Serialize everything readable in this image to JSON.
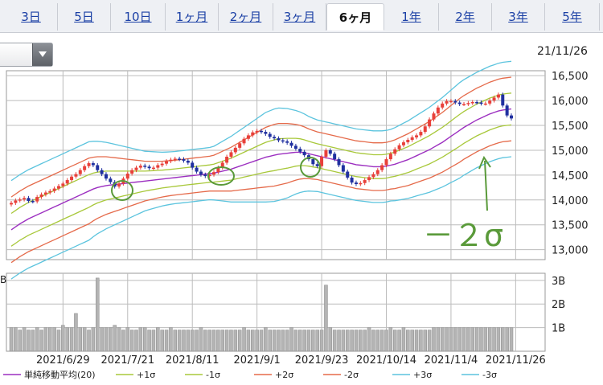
{
  "tabs": [
    {
      "label": "3日",
      "active": false
    },
    {
      "label": "5日",
      "active": false
    },
    {
      "label": "10日",
      "active": false
    },
    {
      "label": "1ヶ月",
      "active": false
    },
    {
      "label": "2ヶ月",
      "active": false
    },
    {
      "label": "3ヶ月",
      "active": false
    },
    {
      "label": "6ヶ月",
      "active": true
    },
    {
      "label": "1年",
      "active": false
    },
    {
      "label": "2年",
      "active": false
    },
    {
      "label": "3年",
      "active": false
    },
    {
      "label": "5年",
      "active": false
    }
  ],
  "dropdown_icon": "caret-down-icon",
  "last_date": "21/11/26",
  "colors": {
    "up": "#e8403a",
    "down": "#2030a0",
    "sma": "#9c2fc0",
    "p1": "#a8c83a",
    "m1": "#a8c83a",
    "p2": "#e56a4a",
    "m2": "#e56a4a",
    "p3": "#5cc4de",
    "m3": "#5cc4de",
    "volume": "#b4b4b4",
    "annotation": "#5a9a3a",
    "grid": "#bcbcbc"
  },
  "chart_data": {
    "type": "candlestick",
    "ylim": [
      12800,
      16600
    ],
    "yticks": [
      "16,500",
      "16,000",
      "15,500",
      "15,000",
      "14,500",
      "14,000",
      "13,500",
      "13,000"
    ],
    "ytick_values": [
      16500,
      16000,
      15500,
      15000,
      14500,
      14000,
      13500,
      13000
    ],
    "volume_ticks": [
      "3B",
      "2B",
      "1B"
    ],
    "volume_tick_values": [
      3,
      2,
      1
    ],
    "volume_unit": "B",
    "volume_ylim": [
      0,
      3.3
    ],
    "xticks": [
      "2021/6/29",
      "2021/7/21",
      "2021/8/11",
      "2021/9/1",
      "2021/9/23",
      "2021/10/14",
      "2021/11/4",
      "2021/11/26"
    ],
    "xtick_index": [
      12,
      27,
      42,
      57,
      72,
      87,
      102,
      117
    ],
    "close": [
      13940,
      13990,
      14010,
      14040,
      13980,
      13970,
      14060,
      14110,
      14150,
      14180,
      14230,
      14280,
      14330,
      14400,
      14470,
      14520,
      14600,
      14680,
      14740,
      14700,
      14600,
      14520,
      14430,
      14360,
      14270,
      14330,
      14430,
      14530,
      14600,
      14650,
      14690,
      14670,
      14640,
      14650,
      14700,
      14730,
      14780,
      14810,
      14830,
      14820,
      14790,
      14750,
      14650,
      14570,
      14510,
      14480,
      14510,
      14560,
      14650,
      14750,
      14870,
      14960,
      15050,
      15140,
      15230,
      15300,
      15360,
      15390,
      15370,
      15330,
      15270,
      15240,
      15200,
      15180,
      15150,
      15090,
      15030,
      14970,
      14900,
      14820,
      14720,
      14680,
      14870,
      15000,
      14930,
      14820,
      14700,
      14570,
      14450,
      14350,
      14320,
      14340,
      14400,
      14460,
      14520,
      14600,
      14700,
      14820,
      14930,
      15020,
      15100,
      15160,
      15210,
      15260,
      15300,
      15370,
      15480,
      15620,
      15740,
      15860,
      15940,
      15990,
      15990,
      15960,
      15930,
      15930,
      15950,
      15970,
      15960,
      15940,
      15940,
      16000,
      16060,
      16120,
      15900,
      15700,
      15640
    ],
    "volume": [
      1.0,
      1.0,
      0.9,
      1.0,
      0.9,
      0.9,
      1.0,
      0.9,
      1.0,
      1.0,
      1.0,
      0.9,
      1.1,
      1.0,
      1.0,
      1.6,
      1.0,
      1.0,
      0.9,
      1.0,
      3.1,
      1.0,
      1.0,
      1.0,
      1.1,
      1.0,
      0.9,
      1.0,
      0.9,
      0.9,
      1.0,
      1.0,
      0.9,
      0.9,
      1.0,
      0.9,
      0.9,
      1.0,
      0.9,
      0.9,
      0.9,
      0.9,
      0.9,
      0.9,
      1.0,
      0.9,
      0.9,
      0.9,
      0.9,
      0.9,
      0.9,
      0.9,
      0.9,
      0.9,
      1.0,
      0.9,
      0.9,
      0.9,
      0.9,
      1.0,
      0.9,
      0.9,
      0.9,
      0.9,
      0.9,
      1.0,
      0.9,
      0.9,
      0.9,
      0.9,
      0.9,
      0.9,
      0.9,
      2.8,
      1.0,
      0.9,
      0.9,
      0.9,
      0.9,
      0.9,
      0.9,
      0.9,
      0.9,
      1.0,
      0.9,
      0.9,
      0.9,
      0.9,
      1.0,
      0.9,
      0.9,
      1.0,
      0.9,
      0.9,
      0.9,
      0.9,
      0.9,
      0.9,
      1.0,
      1.0,
      1.0,
      1.0,
      1.0,
      1.0,
      1.0,
      1.0,
      1.0,
      1.0,
      1.0,
      1.0,
      1.0,
      1.0,
      1.0,
      1.0,
      1.0,
      1.0,
      1.0
    ],
    "sma20": [
      13400,
      13460,
      13520,
      13570,
      13620,
      13660,
      13700,
      13740,
      13780,
      13820,
      13860,
      13900,
      13940,
      13980,
      14020,
      14060,
      14100,
      14140,
      14180,
      14220,
      14250,
      14270,
      14290,
      14300,
      14310,
      14320,
      14330,
      14340,
      14350,
      14360,
      14370,
      14380,
      14390,
      14400,
      14410,
      14420,
      14430,
      14440,
      14450,
      14460,
      14470,
      14480,
      14490,
      14500,
      14510,
      14520,
      14530,
      14540,
      14560,
      14580,
      14600,
      14620,
      14650,
      14680,
      14710,
      14740,
      14770,
      14800,
      14830,
      14860,
      14880,
      14900,
      14920,
      14930,
      14940,
      14950,
      14960,
      14960,
      14950,
      14930,
      14910,
      14890,
      14870,
      14850,
      14830,
      14810,
      14790,
      14770,
      14750,
      14730,
      14710,
      14700,
      14690,
      14680,
      14670,
      14670,
      14670,
      14680,
      14700,
      14720,
      14750,
      14780,
      14810,
      14850,
      14890,
      14930,
      14970,
      15010,
      15060,
      15110,
      15160,
      15220,
      15280,
      15340,
      15400,
      15460,
      15510,
      15560,
      15610,
      15650,
      15690,
      15730,
      15760,
      15790,
      15810,
      15820,
      15830
    ],
    "sigma_offset": [
      330,
      330,
      330,
      330,
      330,
      330,
      330,
      330,
      330,
      330,
      330,
      330,
      330,
      330,
      330,
      330,
      330,
      330,
      330,
      320,
      310,
      300,
      290,
      280,
      270,
      260,
      250,
      240,
      230,
      220,
      210,
      200,
      195,
      190,
      185,
      180,
      178,
      176,
      175,
      175,
      175,
      175,
      175,
      175,
      175,
      175,
      175,
      180,
      190,
      200,
      210,
      220,
      230,
      240,
      250,
      260,
      270,
      280,
      290,
      300,
      305,
      310,
      310,
      305,
      300,
      290,
      280,
      270,
      260,
      250,
      245,
      240,
      240,
      240,
      240,
      240,
      240,
      240,
      240,
      240,
      240,
      240,
      240,
      240,
      240,
      240,
      240,
      240,
      240,
      245,
      250,
      255,
      260,
      265,
      270,
      275,
      280,
      285,
      290,
      295,
      300,
      305,
      310,
      315,
      320,
      320,
      320,
      320,
      320,
      320,
      320,
      320,
      320,
      320,
      320,
      320,
      320
    ]
  },
  "legend": [
    {
      "label": "単純移動平均(20)",
      "color_key": "sma"
    },
    {
      "label": "+1σ",
      "color_key": "p1"
    },
    {
      "label": "-1σ",
      "color_key": "m1"
    },
    {
      "label": "+2σ",
      "color_key": "p2"
    },
    {
      "label": "-2σ",
      "color_key": "m2"
    },
    {
      "label": "+3σ",
      "color_key": "p3"
    },
    {
      "label": "-3σ",
      "color_key": "m3"
    }
  ],
  "annotation": {
    "label": "－２σ"
  }
}
